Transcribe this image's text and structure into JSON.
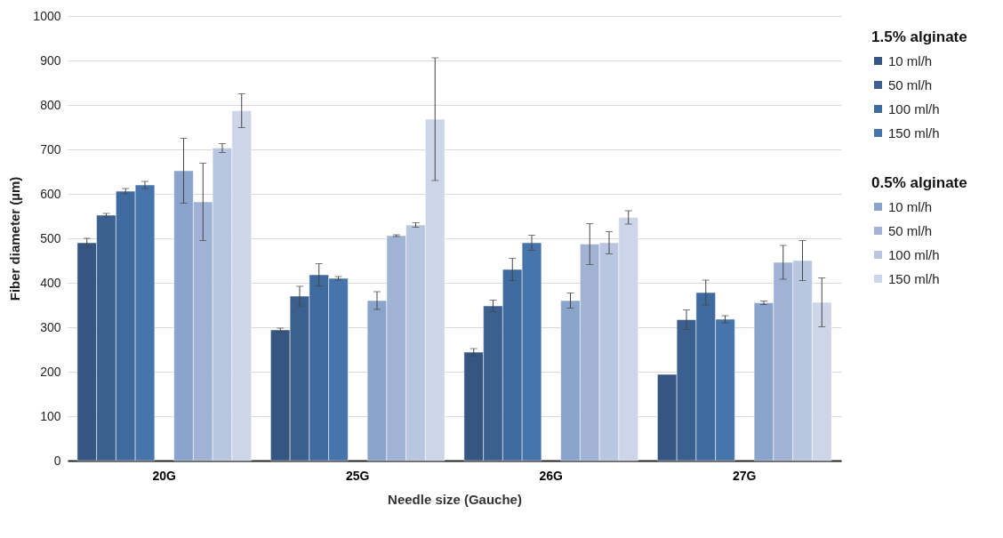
{
  "chart_data": {
    "type": "bar",
    "xlabel": "Needle size (Gauche)",
    "ylabel": "Fiber diameter (µm)",
    "legend_title": [
      "1.5% alginate",
      "0.5% alginate"
    ],
    "categories": [
      "20G",
      "25G",
      "26G",
      "27G"
    ],
    "series": [
      {
        "name": "10 ml/h",
        "color": "#345681",
        "values": [
          490,
          294,
          244,
          194
        ],
        "errors": [
          10,
          4,
          8,
          null
        ]
      },
      {
        "name": "50 ml/h",
        "color": "#3b5f8f",
        "values": [
          552,
          370,
          348,
          317
        ],
        "errors": [
          4,
          22,
          13,
          22
        ]
      },
      {
        "name": "100 ml/h",
        "color": "#3f6a9f",
        "values": [
          606,
          418,
          430,
          378
        ],
        "errors": [
          6,
          25,
          25,
          28
        ]
      },
      {
        "name": "150 ml/h",
        "color": "#4674ab",
        "values": [
          620,
          410,
          490,
          318
        ],
        "errors": [
          8,
          4,
          17,
          8
        ]
      },
      {
        "name": "10 ml/h",
        "color": "#8aa4cc",
        "values": [
          652,
          360,
          360,
          355
        ],
        "errors": [
          73,
          20,
          17,
          4
        ]
      },
      {
        "name": "50 ml/h",
        "color": "#a1b3d5",
        "values": [
          582,
          506,
          487,
          446
        ],
        "errors": [
          87,
          2,
          46,
          38
        ]
      },
      {
        "name": "100 ml/h",
        "color": "#b9c6e0",
        "values": [
          703,
          530,
          490,
          450
        ],
        "errors": [
          10,
          5,
          25,
          45
        ]
      },
      {
        "name": "150 ml/h",
        "color": "#cdd6e9",
        "values": [
          787,
          768,
          547,
          356
        ],
        "errors": [
          38,
          138,
          15,
          55
        ]
      }
    ],
    "ylim": [
      0,
      1000
    ],
    "yticks": [
      0,
      100,
      200,
      300,
      400,
      500,
      600,
      700,
      800,
      900,
      1000
    ],
    "grid": "y",
    "legend": "right"
  }
}
